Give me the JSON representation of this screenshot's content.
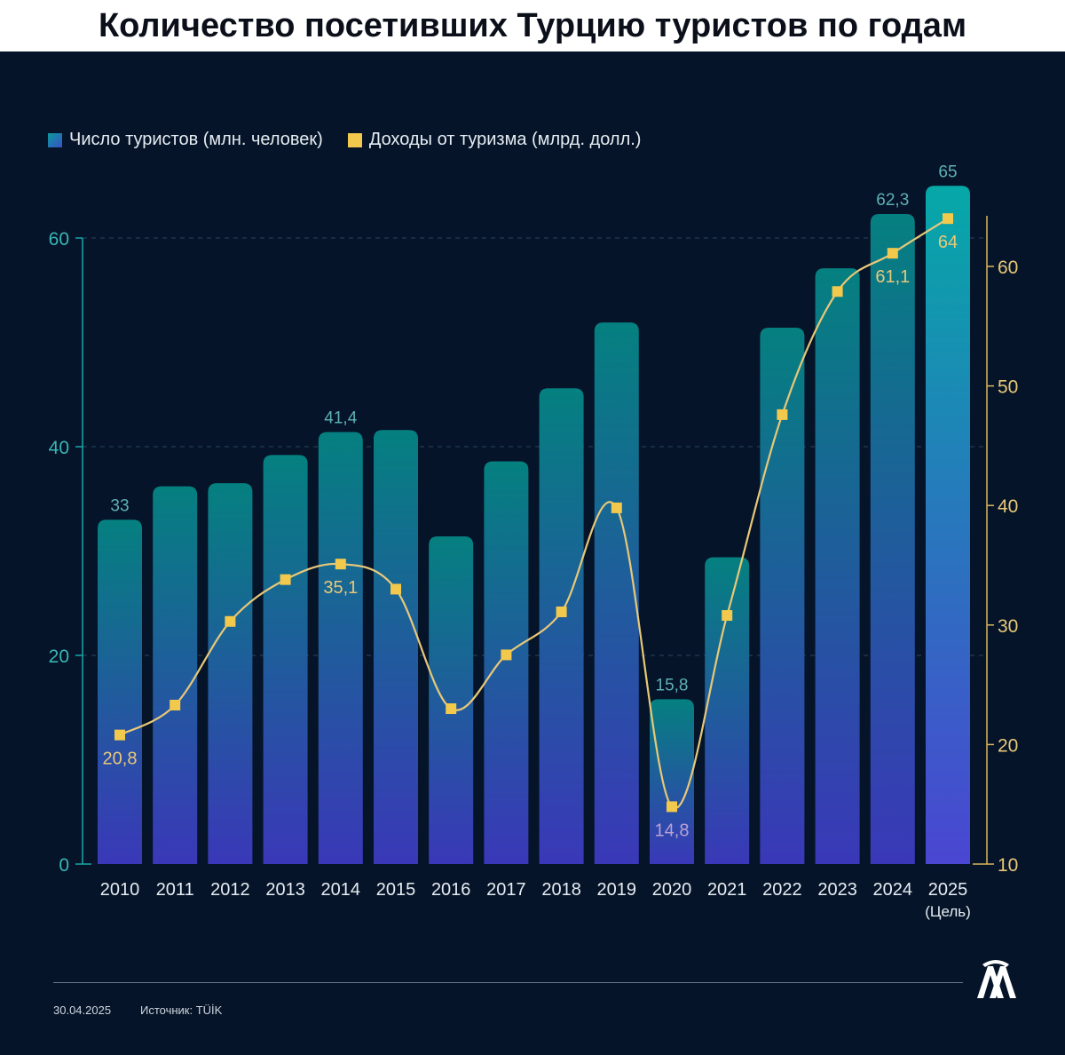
{
  "title": "Количество посетивших Турцию туристов по годам",
  "legend": {
    "bars_label": "Число туристов (млн. человек)",
    "line_label": "Доходы от туризма (млрд. долл.)"
  },
  "footer": {
    "date": "30.04.2025",
    "source": "Источник: TÜİK"
  },
  "chart_data": {
    "type": "bar",
    "categories": [
      "2010",
      "2011",
      "2012",
      "2013",
      "2014",
      "2015",
      "2016",
      "2017",
      "2018",
      "2019",
      "2020",
      "2021",
      "2022",
      "2023",
      "2024",
      "2025"
    ],
    "x_sublabels": {
      "2025": "(Цель)"
    },
    "series": [
      {
        "name": "Число туристов (млн. человек)",
        "type": "bar",
        "axis": "left",
        "values": [
          33.0,
          36.2,
          36.5,
          39.2,
          41.4,
          41.6,
          31.4,
          38.6,
          45.6,
          51.9,
          15.8,
          29.4,
          51.4,
          57.1,
          62.3,
          65.0
        ],
        "labels": {
          "2010": "33",
          "2014": "41,4",
          "2020": "15,8",
          "2024": "62,3",
          "2025": "65"
        }
      },
      {
        "name": "Доходы от туризма (млрд. долл.)",
        "type": "line",
        "axis": "right",
        "values": [
          20.8,
          23.3,
          30.3,
          33.8,
          35.1,
          33.0,
          23.0,
          27.5,
          31.1,
          39.8,
          14.8,
          30.8,
          47.6,
          57.9,
          61.1,
          64.0
        ],
        "labels": {
          "2010": "20,8",
          "2014": "35,1",
          "2020": "14,8",
          "2024": "61,1",
          "2025": "64"
        }
      }
    ],
    "y_left": {
      "ylim": [
        0,
        60
      ],
      "ticks": [
        "0",
        "20",
        "40",
        "60"
      ]
    },
    "y_right": {
      "ylim": [
        10,
        60
      ],
      "ticks": [
        "10",
        "20",
        "30",
        "40",
        "50",
        "60"
      ]
    },
    "grid": "dashed-horizontal",
    "legend_position": "top-left",
    "colors": {
      "background": "#051428",
      "bar_top": "#058080",
      "bar_bottom": "#3a38b8",
      "bar_top_2025": "#06a8a8",
      "bar_bottom_2025": "#4a46d2",
      "line": "#e8c878",
      "marker": "#f2c94c",
      "left_axis": "#18a9a9",
      "right_axis": "#d9b65a",
      "tick_text_left": "#39b6b6",
      "tick_text_right": "#e8c878",
      "bar_label": "#5fb0b4",
      "line_label": "#e8c878",
      "line_label_2020": "#b9a2d6",
      "category_text": "#e6ecf2"
    }
  }
}
